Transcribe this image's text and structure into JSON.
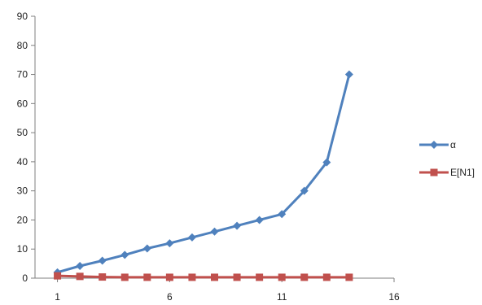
{
  "chart_data": {
    "type": "line",
    "title": "",
    "xlabel": "",
    "ylabel": "",
    "xlim": [
      0,
      16
    ],
    "ylim": [
      0,
      90
    ],
    "x_ticks": [
      "1",
      "6",
      "11",
      "16"
    ],
    "y_ticks": [
      "0",
      "10",
      "20",
      "30",
      "40",
      "50",
      "60",
      "70",
      "80",
      "90"
    ],
    "grid": false,
    "legend_position": "right",
    "series": [
      {
        "name": "α",
        "color": "#4f81bd",
        "marker": "diamond",
        "x": [
          1,
          2,
          3,
          4,
          5,
          6,
          7,
          8,
          9,
          10,
          11,
          12,
          13,
          14
        ],
        "values": [
          2,
          4.2,
          6,
          8,
          10.2,
          12,
          14,
          16,
          18,
          20,
          22,
          30,
          39.8,
          70
        ]
      },
      {
        "name": "E[N1]",
        "color": "#c0504d",
        "marker": "square",
        "x": [
          1,
          2,
          3,
          4,
          5,
          6,
          7,
          8,
          9,
          10,
          11,
          12,
          13,
          14
        ],
        "values": [
          0.8,
          0.6,
          0.4,
          0.3,
          0.3,
          0.3,
          0.3,
          0.3,
          0.3,
          0.3,
          0.3,
          0.3,
          0.3,
          0.3
        ]
      }
    ]
  }
}
